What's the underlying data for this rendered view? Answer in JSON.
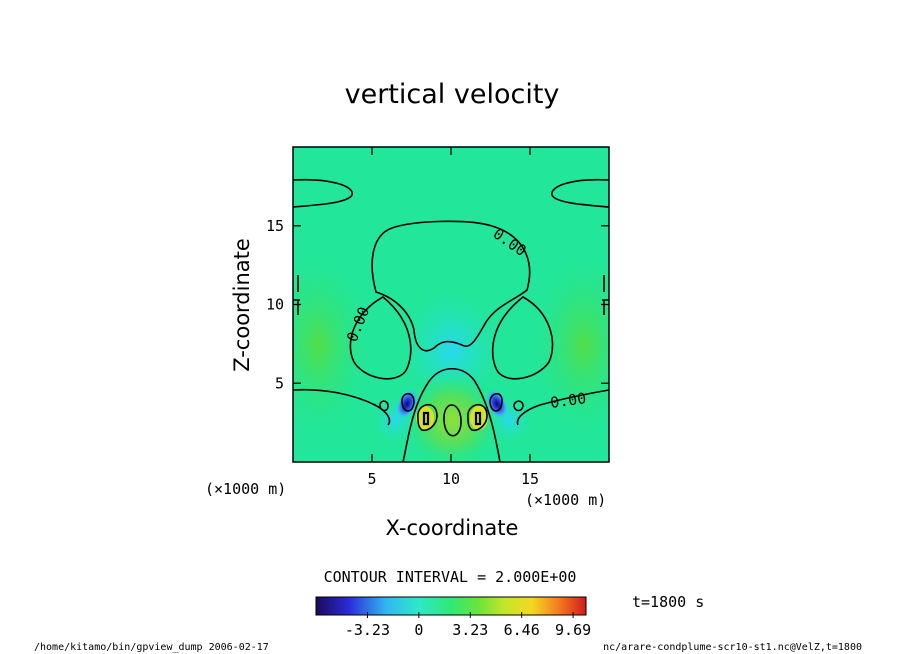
{
  "chart_data": {
    "type": "contour",
    "title": "vertical velocity",
    "xlabel": "X-coordinate",
    "ylabel": "Z-coordinate",
    "x_unit_left": "(×1000 m)",
    "x_unit_right": "(×1000 m)",
    "xlim": [
      0,
      20
    ],
    "ylim": [
      0,
      20
    ],
    "x_ticks": [
      5,
      10,
      15
    ],
    "y_ticks": [
      5,
      10,
      15
    ],
    "contour_interval_text": "CONTOUR INTERVAL = 2.000E+00",
    "contour_labels": [
      "0.00",
      "0.00",
      "0.00"
    ],
    "colorbar": {
      "tick_labels": [
        "-3.23",
        "0",
        "3.23",
        "6.46",
        "9.69"
      ],
      "tick_values": [
        -3.23,
        0,
        3.23,
        6.46,
        9.69
      ],
      "range": [
        -6.46,
        10.5
      ]
    },
    "time_text": "t=1800 s",
    "footer_left": "/home/kitamo/bin/gpview_dump  2006-02-17",
    "footer_right": "nc/arare-condplume-scr10-st1.nc@VelZ,t=1800"
  }
}
